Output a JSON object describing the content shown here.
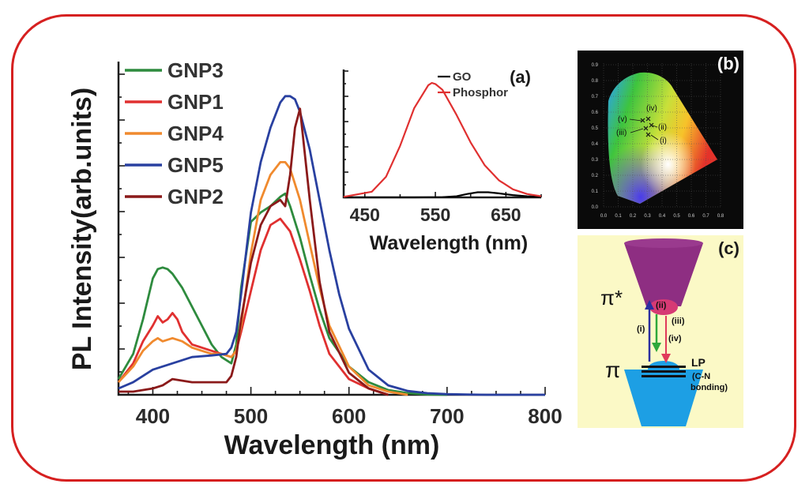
{
  "chart_data": [
    {
      "type": "line",
      "panel": "main",
      "ylabel": "PL Intensity(arb.units)",
      "xlabel": "Wavelength (nm)",
      "xlim": [
        365,
        800
      ],
      "ylim": [
        0,
        1.06
      ],
      "x_ticks": [
        "400",
        "500",
        "600",
        "700",
        "800"
      ],
      "legend_position": "top-left",
      "series": [
        {
          "name": "GNP3",
          "color": "#2e8b3e",
          "x": [
            365,
            380,
            390,
            400,
            405,
            410,
            415,
            420,
            430,
            440,
            450,
            460,
            470,
            480,
            485,
            490,
            500,
            510,
            520,
            530,
            535,
            540,
            550,
            560,
            570,
            580,
            600,
            620,
            640,
            660,
            680,
            700
          ],
          "y": [
            0.05,
            0.13,
            0.24,
            0.37,
            0.4,
            0.405,
            0.4,
            0.385,
            0.34,
            0.28,
            0.22,
            0.16,
            0.12,
            0.1,
            0.16,
            0.34,
            0.55,
            0.58,
            0.6,
            0.63,
            0.64,
            0.6,
            0.5,
            0.38,
            0.27,
            0.18,
            0.09,
            0.04,
            0.015,
            0.005,
            0.001,
            0
          ]
        },
        {
          "name": "GNP1",
          "color": "#e03030",
          "x": [
            365,
            380,
            390,
            400,
            405,
            410,
            415,
            420,
            425,
            430,
            440,
            450,
            460,
            470,
            480,
            485,
            490,
            500,
            510,
            520,
            530,
            540,
            550,
            560,
            570,
            580,
            600,
            620,
            640
          ],
          "y": [
            0.04,
            0.1,
            0.17,
            0.22,
            0.25,
            0.23,
            0.24,
            0.26,
            0.24,
            0.2,
            0.16,
            0.15,
            0.14,
            0.13,
            0.12,
            0.14,
            0.2,
            0.33,
            0.46,
            0.54,
            0.56,
            0.52,
            0.43,
            0.33,
            0.22,
            0.13,
            0.05,
            0.02,
            0
          ]
        },
        {
          "name": "GNP4",
          "color": "#f08a2e",
          "x": [
            365,
            380,
            390,
            400,
            405,
            410,
            420,
            430,
            440,
            450,
            460,
            470,
            480,
            485,
            490,
            500,
            510,
            520,
            530,
            535,
            540,
            550,
            560,
            570,
            580,
            600,
            620,
            640,
            660
          ],
          "y": [
            0.04,
            0.09,
            0.14,
            0.17,
            0.18,
            0.17,
            0.18,
            0.17,
            0.15,
            0.14,
            0.13,
            0.13,
            0.12,
            0.14,
            0.22,
            0.45,
            0.62,
            0.7,
            0.74,
            0.74,
            0.72,
            0.62,
            0.48,
            0.34,
            0.22,
            0.09,
            0.03,
            0.01,
            0
          ]
        },
        {
          "name": "GNP5",
          "color": "#2940a0",
          "x": [
            365,
            380,
            400,
            420,
            440,
            460,
            475,
            480,
            485,
            490,
            500,
            510,
            520,
            530,
            535,
            540,
            545,
            550,
            560,
            570,
            580,
            590,
            600,
            620,
            640,
            660,
            680,
            700,
            720,
            740,
            760,
            780,
            800
          ],
          "y": [
            0.02,
            0.04,
            0.08,
            0.1,
            0.12,
            0.125,
            0.13,
            0.15,
            0.2,
            0.32,
            0.58,
            0.74,
            0.85,
            0.93,
            0.95,
            0.95,
            0.94,
            0.9,
            0.78,
            0.62,
            0.46,
            0.32,
            0.21,
            0.08,
            0.03,
            0.012,
            0.005,
            0.002,
            0.001,
            0,
            0,
            0,
            0
          ]
        },
        {
          "name": "GNP2",
          "color": "#8b1a1a",
          "x": [
            365,
            380,
            400,
            410,
            420,
            430,
            440,
            460,
            475,
            480,
            485,
            490,
            500,
            510,
            520,
            530,
            535,
            540,
            545,
            550,
            560,
            570,
            580,
            600,
            620,
            640
          ],
          "y": [
            0.01,
            0.01,
            0.02,
            0.03,
            0.05,
            0.045,
            0.04,
            0.04,
            0.04,
            0.06,
            0.12,
            0.24,
            0.42,
            0.54,
            0.6,
            0.62,
            0.6,
            0.7,
            0.85,
            0.91,
            0.62,
            0.36,
            0.2,
            0.07,
            0.02,
            0
          ]
        }
      ]
    },
    {
      "type": "line",
      "panel": "(a)",
      "xlabel": "Wavelength (nm)",
      "xlim": [
        420,
        700
      ],
      "x_ticks": [
        "450",
        "550",
        "650"
      ],
      "legend_position": "top-right",
      "series": [
        {
          "name": "GO",
          "color": "#000000",
          "x": [
            420,
            520,
            560,
            580,
            595,
            610,
            625,
            640,
            660,
            680,
            700
          ],
          "y": [
            0,
            0,
            0.002,
            0.01,
            0.03,
            0.045,
            0.045,
            0.035,
            0.02,
            0.01,
            0.005
          ]
        },
        {
          "name": "Phosphor",
          "color": "#e03030",
          "x": [
            420,
            460,
            480,
            500,
            520,
            540,
            545,
            550,
            560,
            580,
            600,
            620,
            640,
            660,
            680,
            700
          ],
          "y": [
            0.005,
            0.05,
            0.18,
            0.45,
            0.78,
            0.98,
            1.0,
            0.99,
            0.94,
            0.72,
            0.48,
            0.28,
            0.15,
            0.07,
            0.03,
            0.01
          ]
        }
      ]
    }
  ],
  "panel_labels": {
    "a": "(a)",
    "b": "(b)",
    "c": "(c)"
  },
  "cie": {
    "ticks_x": [
      "0.0",
      "0.1",
      "0.2",
      "0.3",
      "0.4",
      "0.5",
      "0.6",
      "0.7",
      "0.8"
    ],
    "ticks_y": [
      "0.9",
      "0.8",
      "0.7",
      "0.6",
      "0.5",
      "0.4",
      "0.3",
      "0.2",
      "0.1",
      "0.0"
    ],
    "points": [
      "(iv)",
      "(v)",
      "(ii)",
      "(iii)",
      "(i)"
    ]
  },
  "energy": {
    "pi_star": "π*",
    "pi": "π",
    "lp": "LP",
    "lp_sub1": "(C-N",
    "lp_sub2": "bonding)",
    "labels": [
      "(ii)",
      "(i)",
      "(iii)",
      "(iv)"
    ]
  }
}
